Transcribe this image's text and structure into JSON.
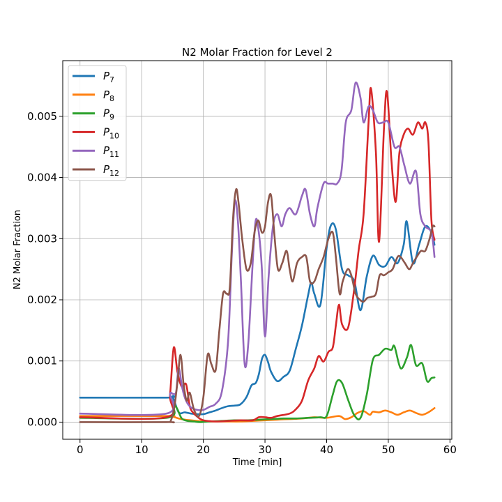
{
  "chart_data": {
    "type": "line",
    "title": "N2 Molar Fraction for Level 2",
    "xlabel": "Time [min]",
    "ylabel": "N2 Molar Fraction",
    "xlim": [
      -2.8,
      60.3
    ],
    "ylim": [
      -0.00028,
      0.00591
    ],
    "xticks": [
      0,
      10,
      20,
      30,
      40,
      50,
      60
    ],
    "yticks": [
      0.0,
      0.001,
      0.002,
      0.003,
      0.004,
      0.005
    ],
    "ytick_labels": [
      "0.000",
      "0.001",
      "0.002",
      "0.003",
      "0.004",
      "0.005"
    ],
    "grid": true,
    "legend_position": "top-left",
    "series": [
      {
        "name": "P",
        "subscript": "7",
        "color": "#1f77b4",
        "x": [
          0,
          14,
          15,
          16,
          17,
          18,
          19,
          20,
          21,
          22,
          23,
          24,
          25,
          26,
          27,
          27.8,
          28.5,
          29,
          29.5,
          30,
          30.5,
          31,
          32,
          33,
          34,
          35,
          36,
          37,
          37.5,
          38,
          39,
          40,
          40.7,
          41.5,
          42.5,
          43.5,
          44.5,
          45.5,
          46.5,
          47.5,
          48.5,
          49.5,
          50.5,
          51.5,
          52.5,
          53,
          54,
          55,
          56,
          57,
          57.5
        ],
        "y": [
          0.0004,
          0.0004,
          0.00041,
          0.00016,
          0.00016,
          0.00014,
          0.00013,
          0.00013,
          0.00016,
          0.00019,
          0.00023,
          0.00026,
          0.00027,
          0.00029,
          0.00041,
          0.0006,
          0.00064,
          0.00078,
          0.00103,
          0.0011,
          0.00098,
          0.00082,
          0.00067,
          0.00074,
          0.00084,
          0.0012,
          0.00158,
          0.00208,
          0.00228,
          0.0021,
          0.00192,
          0.00285,
          0.00322,
          0.00315,
          0.0025,
          0.0024,
          0.0023,
          0.00183,
          0.00238,
          0.00272,
          0.00257,
          0.00255,
          0.0027,
          0.0026,
          0.0029,
          0.00328,
          0.0026,
          0.0029,
          0.0032,
          0.0031,
          0.0029
        ]
      },
      {
        "name": "P",
        "subscript": "8",
        "color": "#ff7f0e",
        "x": [
          0,
          14,
          15,
          16,
          17,
          18,
          19,
          20,
          22,
          24,
          26,
          28,
          30,
          32,
          34,
          36,
          38,
          40,
          42,
          43,
          44,
          45,
          46,
          47,
          47.5,
          48.5,
          49.5,
          50.5,
          51.5,
          52.5,
          53.5,
          54.5,
          55.5,
          56.5,
          57.5
        ],
        "y": [
          0.0001,
          0.0001,
          9e-05,
          6e-05,
          4e-05,
          3e-05,
          2e-05,
          1e-05,
          1e-05,
          1e-05,
          1e-05,
          2e-05,
          3e-05,
          4e-05,
          5e-05,
          6e-05,
          8e-05,
          7e-05,
          0.0001,
          5e-05,
          8e-05,
          0.00015,
          0.00018,
          0.00012,
          0.00017,
          0.00016,
          0.00019,
          0.00016,
          0.00012,
          0.00016,
          0.00019,
          0.00015,
          0.00012,
          0.00016,
          0.00023
        ]
      },
      {
        "name": "P",
        "subscript": "9",
        "color": "#2ca02c",
        "x": [
          0,
          14,
          15,
          15.7,
          16.5,
          17.5,
          18.5,
          19.5,
          21,
          23,
          25,
          27,
          29,
          31,
          33,
          35,
          37,
          39,
          40,
          41,
          41.7,
          42.5,
          43.5,
          44.5,
          45.5,
          46.5,
          47.5,
          48.5,
          49.5,
          50.5,
          51,
          52,
          53,
          53.7,
          54.5,
          55.5,
          56.3,
          57,
          57.5
        ],
        "y": [
          7e-05,
          7e-05,
          0.00028,
          0.00023,
          6e-05,
          2e-05,
          1e-05,
          0.0,
          1e-05,
          2e-05,
          3e-05,
          3e-05,
          4e-05,
          5e-05,
          6e-05,
          6e-05,
          7e-05,
          8e-05,
          0.0001,
          0.00045,
          0.00067,
          0.00064,
          0.00036,
          0.00011,
          7e-05,
          0.00045,
          0.00102,
          0.0011,
          0.0012,
          0.00118,
          0.00124,
          0.00088,
          0.00105,
          0.00126,
          0.00093,
          0.00096,
          0.00067,
          0.00072,
          0.00073
        ]
      },
      {
        "name": "P",
        "subscript": "10",
        "color": "#d62728",
        "x": [
          0,
          14,
          14.6,
          15.2,
          15.8,
          16.5,
          17.2,
          17.8,
          18.3,
          19,
          20,
          22,
          24,
          26,
          28,
          29,
          30,
          31,
          32,
          34,
          35,
          36,
          37,
          38,
          38.7,
          39.5,
          40.3,
          41,
          41.5,
          42,
          42.5,
          43.5,
          44.5,
          45.2,
          46,
          46.8,
          47.2,
          48,
          48.5,
          49.3,
          49.8,
          50.5,
          51.2,
          51.8,
          52.5,
          53.2,
          54,
          54.8,
          55.5,
          56,
          56.5,
          57,
          57.5
        ],
        "y": [
          8e-05,
          8e-05,
          0.00045,
          0.00122,
          0.00082,
          0.00058,
          0.00062,
          0.00026,
          0.00016,
          9e-05,
          3e-05,
          1e-05,
          2e-05,
          3e-05,
          3e-05,
          8e-05,
          8e-05,
          7e-05,
          0.0001,
          0.00014,
          0.00021,
          0.00035,
          0.00068,
          0.00088,
          0.00108,
          0.00099,
          0.00115,
          0.00122,
          0.00158,
          0.00192,
          0.0016,
          0.00155,
          0.0022,
          0.00282,
          0.0034,
          0.0049,
          0.00545,
          0.0044,
          0.00295,
          0.0048,
          0.0054,
          0.0043,
          0.0036,
          0.0044,
          0.0047,
          0.0048,
          0.0047,
          0.0049,
          0.0048,
          0.0049,
          0.0046,
          0.0033,
          0.00298
        ]
      },
      {
        "name": "P",
        "subscript": "11",
        "color": "#9467bd",
        "x": [
          0,
          14,
          14.6,
          15.1,
          15.6,
          16,
          16.6,
          17.2,
          18,
          19,
          20,
          21,
          22,
          23,
          24,
          24.6,
          25.1,
          25.6,
          26.1,
          26.7,
          27.3,
          28,
          28.5,
          29,
          29.5,
          30,
          30.6,
          31.3,
          32,
          32.7,
          33.3,
          34,
          35,
          36,
          36.6,
          37.3,
          38,
          38.5,
          39.5,
          40.2,
          41,
          41.7,
          42.4,
          43.1,
          44,
          44.7,
          45.5,
          46,
          46.8,
          47.5,
          48.3,
          49.2,
          50,
          51,
          51.8,
          52.6,
          53.5,
          54.5,
          55.2,
          56,
          57,
          57.5
        ],
        "y": [
          0.00014,
          0.00014,
          0.00046,
          0.00046,
          0.0005,
          0.00088,
          0.00055,
          0.00035,
          0.00024,
          0.0002,
          0.0002,
          0.00025,
          0.0003,
          0.0005,
          0.0013,
          0.0027,
          0.0036,
          0.0033,
          0.0023,
          0.00095,
          0.0013,
          0.0026,
          0.0033,
          0.0031,
          0.0025,
          0.0014,
          0.0024,
          0.0032,
          0.0034,
          0.0032,
          0.0034,
          0.0035,
          0.0034,
          0.0037,
          0.0038,
          0.0034,
          0.0032,
          0.0035,
          0.0039,
          0.0039,
          0.0039,
          0.0039,
          0.0041,
          0.0049,
          0.0051,
          0.00555,
          0.0053,
          0.0049,
          0.00516,
          0.0051,
          0.0049,
          0.0049,
          0.0049,
          0.0045,
          0.0045,
          0.0042,
          0.0039,
          0.0041,
          0.0034,
          0.0032,
          0.0031,
          0.0027
        ]
      },
      {
        "name": "P",
        "subscript": "12",
        "color": "#8c564b",
        "x": [
          0,
          14,
          14.7,
          15.3,
          15.8,
          16.3,
          16.8,
          17.3,
          17.8,
          18.5,
          19.3,
          20,
          20.7,
          21.3,
          22,
          22.6,
          23.2,
          23.8,
          24.3,
          24.8,
          25.3,
          25.7,
          26.3,
          27,
          27.7,
          28.3,
          28.9,
          29.5,
          30,
          30.5,
          31,
          31.5,
          32.1,
          32.8,
          33.5,
          34,
          34.5,
          35.2,
          36,
          36.7,
          37.3,
          38,
          38.7,
          39.5,
          40.3,
          41,
          41.5,
          42.1,
          42.6,
          43.4,
          44,
          44.7,
          45.4,
          46,
          46.6,
          47.3,
          48,
          48.6,
          49.3,
          50,
          50.7,
          51.5,
          52,
          52.7,
          53.4,
          54,
          54.6,
          55.3,
          56,
          56.7,
          57.2,
          57.5
        ],
        "y": [
          0.0,
          0.0,
          2e-05,
          0.00025,
          0.00065,
          0.0011,
          0.00062,
          0.00035,
          0.00048,
          0.0002,
          0.0001,
          0.0004,
          0.0011,
          0.00095,
          0.00085,
          0.0015,
          0.0021,
          0.0021,
          0.0022,
          0.0033,
          0.0038,
          0.0036,
          0.003,
          0.0025,
          0.0026,
          0.0031,
          0.0033,
          0.0031,
          0.0032,
          0.0036,
          0.0037,
          0.0031,
          0.0025,
          0.0026,
          0.0028,
          0.0025,
          0.0023,
          0.0026,
          0.0027,
          0.0027,
          0.0023,
          0.0023,
          0.0025,
          0.0027,
          0.003,
          0.0031,
          0.0027,
          0.0021,
          0.0023,
          0.0025,
          0.0024,
          0.0021,
          0.002,
          0.00197,
          0.00203,
          0.00205,
          0.0021,
          0.0024,
          0.0024,
          0.00245,
          0.0025,
          0.0027,
          0.0027,
          0.0026,
          0.0025,
          0.0026,
          0.0027,
          0.0028,
          0.0028,
          0.003,
          0.0032,
          0.0032
        ]
      }
    ]
  }
}
